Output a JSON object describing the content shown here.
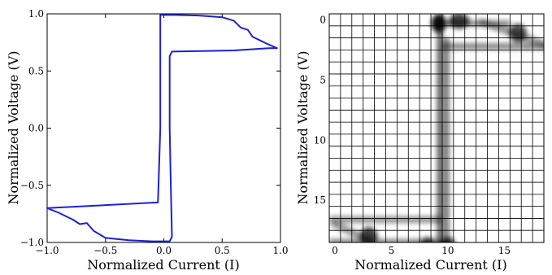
{
  "chart_data": [
    {
      "type": "line",
      "xlabel": "Normalized Current (I)",
      "ylabel": "Normalized Voltage (V)",
      "xlim": [
        -1.0,
        1.0
      ],
      "ylim": [
        -1.0,
        1.0
      ],
      "x_ticks": [
        -1.0,
        -0.5,
        0.0,
        0.5,
        1.0
      ],
      "x_tick_labels": [
        "−1.0",
        "−0.5",
        "0.0",
        "0.5",
        "1.0"
      ],
      "y_ticks": [
        -1.0,
        -0.5,
        0.0,
        0.5,
        1.0
      ],
      "y_tick_labels": [
        "−1.0",
        "−0.5",
        "0.0",
        "0.5",
        "1.0"
      ],
      "grid": false,
      "line_color": "#1f1fd6",
      "series": [
        {
          "x": [
            -1.0,
            -0.9,
            -0.82,
            -0.78,
            -0.72,
            -0.66,
            -0.6,
            -0.5,
            -0.3,
            -0.1,
            0.05,
            0.07,
            0.06,
            0.05,
            0.05,
            0.05,
            0.07,
            0.6,
            0.9,
            0.97,
            0.88,
            0.84,
            0.76,
            0.72,
            0.66,
            0.6,
            0.5,
            0.3,
            0.1,
            -0.03,
            -0.03,
            -0.03,
            -0.05,
            -1.0
          ],
          "y": [
            -0.7,
            -0.74,
            -0.78,
            -0.8,
            -0.84,
            -0.83,
            -0.9,
            -0.96,
            -0.98,
            -0.99,
            -0.99,
            -0.95,
            -0.5,
            0.0,
            0.4,
            0.63,
            0.67,
            0.68,
            0.7,
            0.7,
            0.74,
            0.76,
            0.8,
            0.86,
            0.88,
            0.94,
            0.97,
            0.985,
            0.99,
            0.99,
            0.5,
            0.0,
            -0.65,
            -0.7
          ]
        }
      ]
    },
    {
      "type": "heatmap",
      "xlabel": "Normalized Current (I)",
      "ylabel": "Normalized Voltage (V)",
      "xlim": [
        0,
        19
      ],
      "ylim": [
        19,
        0
      ],
      "x_ticks": [
        0,
        5,
        10,
        15
      ],
      "y_ticks": [
        0,
        5,
        10,
        15
      ],
      "grid": true,
      "colormap": "gray_r",
      "blobs": [
        {
          "x": 9.2,
          "y": 0.3,
          "sx": 0.5,
          "sy": 0.6,
          "a": 0.9
        },
        {
          "x": 11.0,
          "y": 0.1,
          "sx": 0.7,
          "sy": 0.5,
          "a": 0.75
        },
        {
          "x": 16.2,
          "y": 1.1,
          "sx": 0.6,
          "sy": 0.6,
          "a": 0.7
        },
        {
          "x": 3.0,
          "y": 18.0,
          "sx": 0.6,
          "sy": 0.6,
          "a": 0.75
        },
        {
          "x": 8.2,
          "y": 18.7,
          "sx": 0.5,
          "sy": 0.5,
          "a": 0.7
        },
        {
          "x": 10.0,
          "y": 18.7,
          "sx": 0.5,
          "sy": 0.5,
          "a": 0.8
        }
      ],
      "bands": [
        {
          "orient": "v",
          "pos": 9.3,
          "from": 0,
          "to": 19,
          "w": 0.55,
          "a": 0.6
        },
        {
          "orient": "v",
          "pos": 9.9,
          "from": 2,
          "to": 19,
          "w": 0.45,
          "a": 0.55
        },
        {
          "orient": "h",
          "pos": 0.3,
          "from": 9,
          "to": 15,
          "w": 0.5,
          "a": 0.45
        },
        {
          "orient": "h",
          "pos": 2.2,
          "from": 10,
          "to": 19,
          "w": 0.55,
          "a": 0.45
        },
        {
          "orient": "h",
          "pos": 16.6,
          "from": 0,
          "to": 9,
          "w": 0.6,
          "a": 0.4
        },
        {
          "orient": "h",
          "pos": 18.5,
          "from": 0,
          "to": 9,
          "w": 0.6,
          "a": 0.45
        },
        {
          "orient": "d",
          "x1": 0,
          "y1": 17,
          "x2": 3.0,
          "y2": 18.3,
          "w": 0.6,
          "a": 0.4
        },
        {
          "orient": "d",
          "x1": 13.0,
          "y1": 0.2,
          "x2": 19,
          "y2": 2.2,
          "w": 0.6,
          "a": 0.4
        }
      ]
    }
  ]
}
